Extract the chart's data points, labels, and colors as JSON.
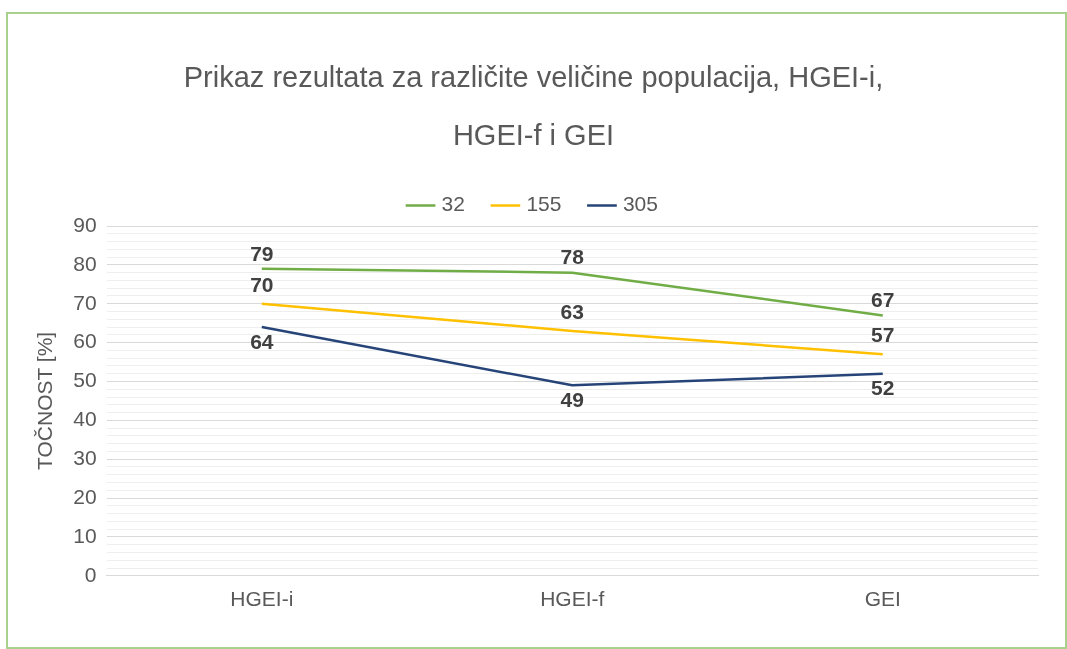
{
  "chart_data": {
    "type": "line",
    "title": "Prikaz rezultata za različite veličine populacija, HGEI-i, HGEI-f i GEI",
    "ylabel": "TOČNOST [%]",
    "categories": [
      "HGEI-i",
      "HGEI-f",
      "GEI"
    ],
    "series": [
      {
        "name": "32",
        "color": "#70ad47",
        "values": [
          79,
          78,
          67
        ]
      },
      {
        "name": "155",
        "color": "#ffc000",
        "values": [
          70,
          63,
          57
        ]
      },
      {
        "name": "305",
        "color": "#264478",
        "values": [
          64,
          49,
          52
        ]
      }
    ],
    "ylim": [
      0,
      90
    ],
    "yticks": [
      0,
      {
        "value": 2,
        "label": null
      },
      {
        "value": 4,
        "label": null
      },
      {
        "value": 6,
        "label": null
      },
      {
        "value": 8,
        "label": null
      },
      10,
      {
        "value": 12,
        "label": null
      },
      {
        "value": 14,
        "label": null
      },
      {
        "value": 16,
        "label": null
      },
      {
        "value": 18,
        "label": null
      },
      20,
      {
        "value": 22,
        "label": null
      },
      {
        "value": 24,
        "label": null
      },
      {
        "value": 26,
        "label": null
      },
      {
        "value": 28,
        "label": null
      },
      30,
      {
        "value": 32,
        "label": null
      },
      {
        "value": 34,
        "label": null
      },
      {
        "value": 36,
        "label": null
      },
      {
        "value": 38,
        "label": null
      },
      40,
      {
        "value": 42,
        "label": null
      },
      {
        "value": 44,
        "label": null
      },
      {
        "value": 46,
        "label": null
      },
      {
        "value": 48,
        "label": null
      },
      50,
      {
        "value": 52,
        "label": null
      },
      {
        "value": 54,
        "label": null
      },
      {
        "value": 56,
        "label": null
      },
      {
        "value": 58,
        "label": null
      },
      60,
      {
        "value": 62,
        "label": null
      },
      {
        "value": 64,
        "label": null
      },
      {
        "value": 66,
        "label": null
      },
      {
        "value": 68,
        "label": null
      },
      70,
      {
        "value": 72,
        "label": null
      },
      {
        "value": 74,
        "label": null
      },
      {
        "value": 76,
        "label": null
      },
      {
        "value": 78,
        "label": null
      },
      80,
      {
        "value": 82,
        "label": null
      },
      {
        "value": 84,
        "label": null
      },
      {
        "value": 86,
        "label": null
      },
      {
        "value": 88,
        "label": null
      },
      90
    ],
    "grid": "y",
    "legend": "top",
    "marker": "none",
    "line_style": "solid",
    "data_labels": true
  }
}
